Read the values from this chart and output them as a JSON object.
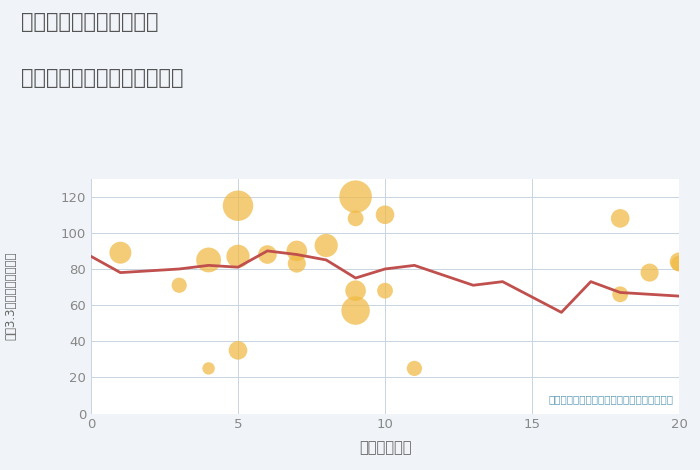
{
  "title_line1": "三重県津市河芸町上野の",
  "title_line2": "駅距離別中古マンション価格",
  "xlabel": "駅距離（分）",
  "ylabel": "坪（3.3㎡）単価（万円）",
  "annotation": "円の大きさは、取引のあった物件面積を示す",
  "background_color": "#f0f3f7",
  "plot_bg_color": "#ffffff",
  "grid_color": "#c8d4e0",
  "line_color": "#c0504d",
  "scatter_color": "#f0b942",
  "scatter_alpha": 0.72,
  "scatter_edgecolor": "none",
  "xlim": [
    0,
    20
  ],
  "ylim": [
    0,
    130
  ],
  "xticks": [
    0,
    5,
    10,
    15,
    20
  ],
  "yticks": [
    0,
    20,
    40,
    60,
    80,
    100,
    120
  ],
  "line_data_x": [
    0,
    1,
    3,
    4,
    5,
    6,
    7,
    8,
    9,
    10,
    11,
    13,
    14,
    16,
    17,
    18,
    19,
    20
  ],
  "line_data_y": [
    87,
    78,
    80,
    82,
    81,
    90,
    88,
    85,
    75,
    80,
    82,
    71,
    73,
    56,
    73,
    67,
    66,
    65
  ],
  "scatter_x": [
    1,
    3,
    4,
    4,
    5,
    5,
    5,
    6,
    7,
    7,
    8,
    9,
    9,
    9,
    9,
    10,
    10,
    11,
    18,
    18,
    19,
    20,
    20
  ],
  "scatter_y": [
    89,
    71,
    25,
    85,
    115,
    87,
    35,
    88,
    90,
    83,
    93,
    120,
    108,
    68,
    57,
    110,
    68,
    25,
    108,
    66,
    78,
    83,
    84
  ],
  "scatter_size": [
    250,
    120,
    80,
    320,
    480,
    280,
    180,
    180,
    220,
    170,
    280,
    550,
    130,
    220,
    420,
    180,
    130,
    120,
    180,
    130,
    170,
    130,
    180
  ],
  "title_color": "#555555",
  "annotation_color": "#5b9ab5",
  "tick_color": "#888888",
  "label_color": "#666666"
}
